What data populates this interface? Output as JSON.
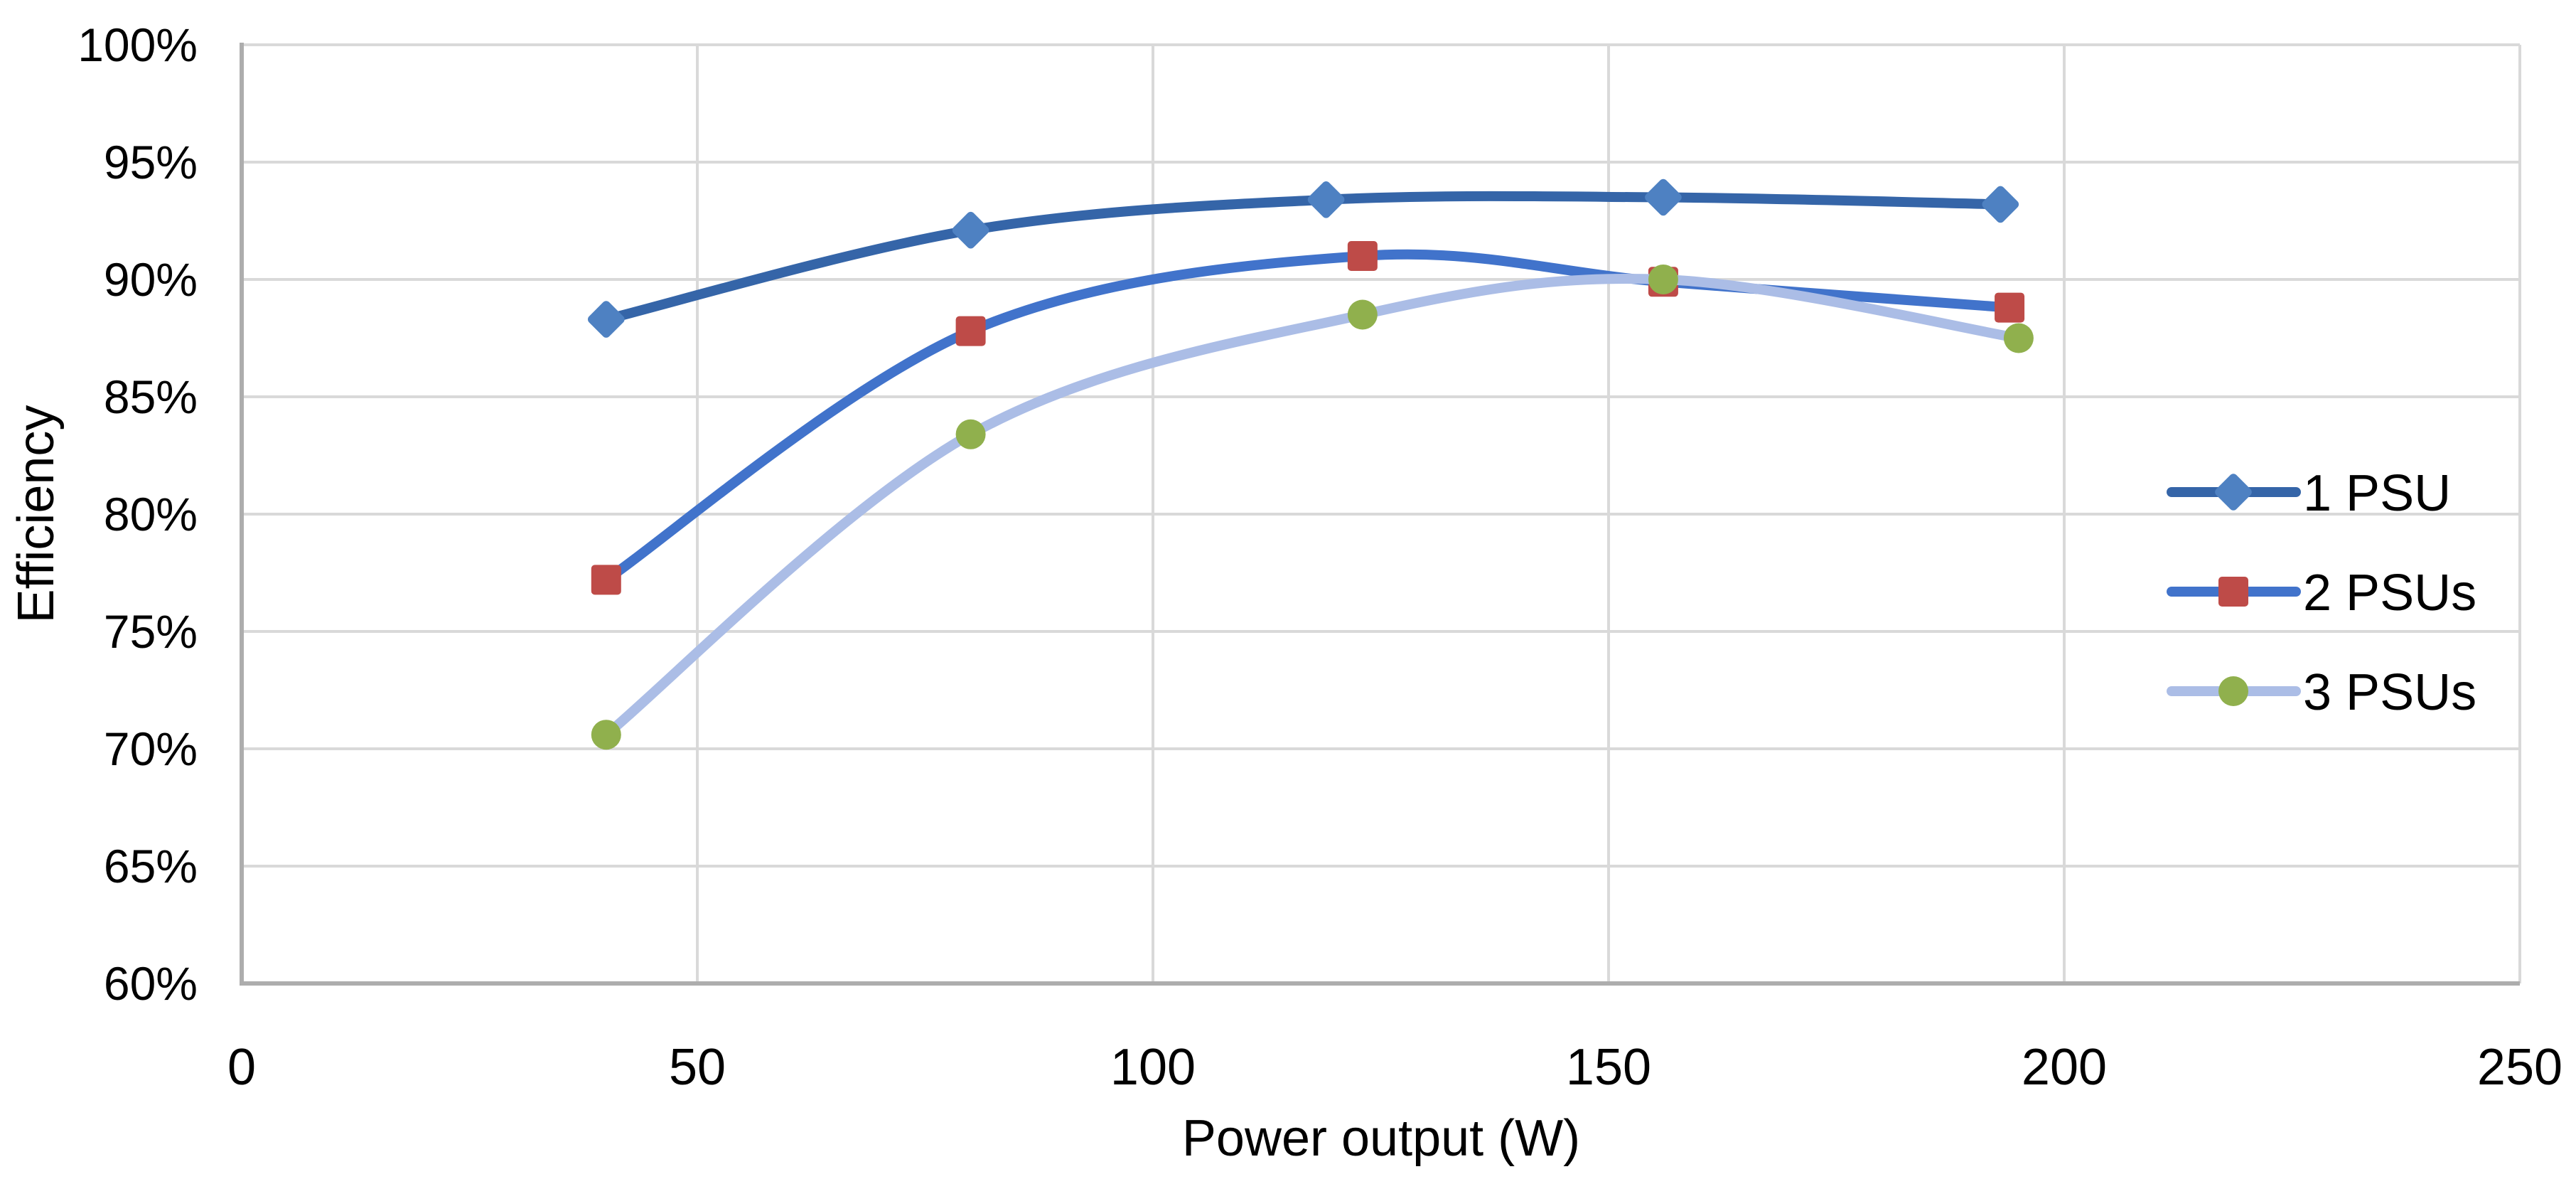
{
  "chart_data": {
    "type": "line",
    "title": "",
    "xlabel": "Power output (W)",
    "ylabel": "Efficiency",
    "xlim": [
      0,
      250
    ],
    "ylim": [
      60,
      100
    ],
    "grid": true,
    "legend_position": "inside-right",
    "x_ticks": [
      0,
      50,
      100,
      150,
      200,
      250
    ],
    "y_ticks": [
      {
        "value": 100,
        "label": "100%"
      },
      {
        "value": 95,
        "label": "95%"
      },
      {
        "value": 90,
        "label": "90%"
      },
      {
        "value": 85,
        "label": "85%"
      },
      {
        "value": 80,
        "label": "80%"
      },
      {
        "value": 75,
        "label": "75%"
      },
      {
        "value": 70,
        "label": "70%"
      },
      {
        "value": 65,
        "label": "65%"
      },
      {
        "value": 60,
        "label": "60%"
      }
    ],
    "series": [
      {
        "name": "1 PSU",
        "marker": "diamond",
        "line_color": "#3565A8",
        "marker_color": "#4E81C2",
        "points": [
          {
            "x": 40,
            "y": 88.3
          },
          {
            "x": 80,
            "y": 92.1
          },
          {
            "x": 119,
            "y": 93.4
          },
          {
            "x": 156,
            "y": 93.5
          },
          {
            "x": 193,
            "y": 93.2
          }
        ]
      },
      {
        "name": "2 PSUs",
        "marker": "square",
        "line_color": "#4173CB",
        "marker_color": "#BE4B48",
        "points": [
          {
            "x": 40,
            "y": 77.2
          },
          {
            "x": 80,
            "y": 87.8
          },
          {
            "x": 123,
            "y": 91.0
          },
          {
            "x": 156,
            "y": 89.9
          },
          {
            "x": 194,
            "y": 88.8
          }
        ]
      },
      {
        "name": "3 PSUs",
        "marker": "circle",
        "line_color": "#ABBDE6",
        "marker_color": "#90B04D",
        "points": [
          {
            "x": 40,
            "y": 70.6
          },
          {
            "x": 80,
            "y": 83.4
          },
          {
            "x": 123,
            "y": 88.5
          },
          {
            "x": 156,
            "y": 90.0
          },
          {
            "x": 195,
            "y": 87.5
          }
        ]
      }
    ]
  },
  "colors": {
    "background": "#FFFFFF",
    "gridline": "#D9D9D9",
    "axis_line": "#ADADAD",
    "text": "#000000"
  }
}
